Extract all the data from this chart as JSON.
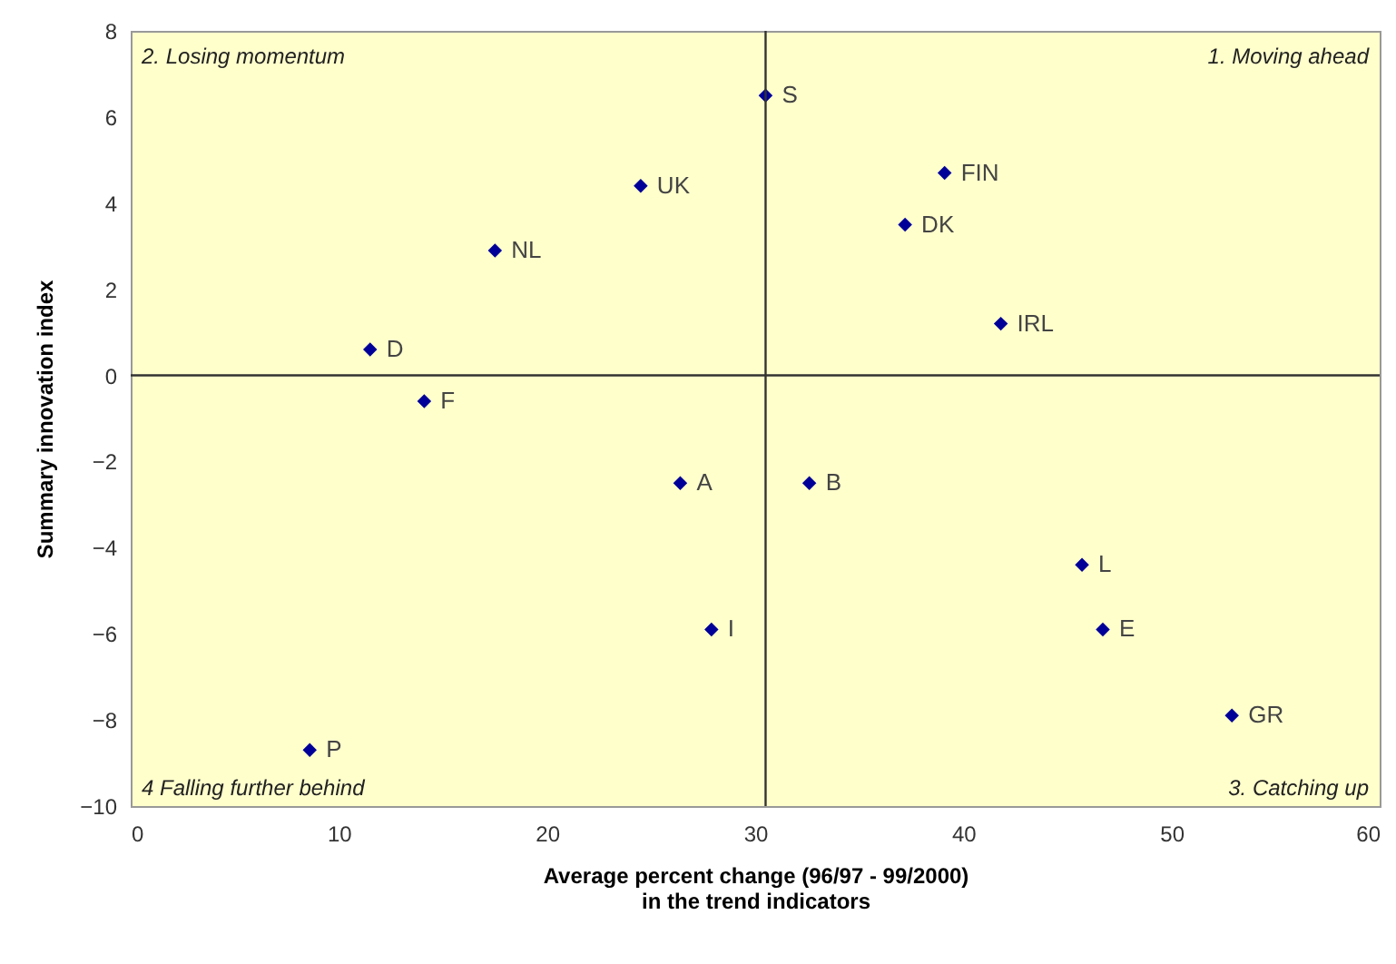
{
  "chart_data": {
    "type": "scatter",
    "xlabel": "Average percent change (96/97 - 99/2000)\nin the trend indicators",
    "ylabel": "Summary innovation index",
    "x": [
      30.5,
      24.5,
      17.5,
      11.5,
      14.1,
      39.1,
      37.2,
      41.8,
      26.4,
      32.6,
      27.9,
      45.7,
      46.7,
      52.9,
      8.6
    ],
    "series": [
      {
        "color": "#000099",
        "values": [
          6.5,
          4.4,
          2.9,
          0.6,
          -0.6,
          4.7,
          3.5,
          1.2,
          -2.5,
          -2.5,
          -5.9,
          -4.4,
          -5.9,
          -7.9,
          -8.7
        ]
      }
    ],
    "xlim": [
      0,
      60
    ],
    "xticks": [
      0,
      10,
      20,
      30,
      40,
      50,
      60
    ],
    "ylim": [
      -10,
      8
    ],
    "yticks": [
      -10,
      -8,
      -6,
      -4,
      -2,
      0,
      2,
      4,
      6,
      8
    ],
    "marker": "diamond",
    "ref_lines": [
      {
        "axis": "x",
        "value": 30.5,
        "color": "#333333"
      },
      {
        "axis": "y",
        "value": 0,
        "color": "#333333"
      }
    ],
    "annotations": [
      "2. Losing momentum",
      "1. Moving ahead",
      "3. Catching up",
      "4 Falling further behind",
      {
        "text": "S",
        "x": 30.5,
        "y": 6.5
      },
      {
        "text": "UK",
        "x": 24.5,
        "y": 4.4
      },
      {
        "text": "NL",
        "x": 17.5,
        "y": 2.9
      },
      {
        "text": "D",
        "x": 11.5,
        "y": 0.6
      },
      {
        "text": "F",
        "x": 14.1,
        "y": -0.6
      },
      {
        "text": "FIN",
        "x": 39.1,
        "y": 4.7
      },
      {
        "text": "DK",
        "x": 37.2,
        "y": 3.5
      },
      {
        "text": "IRL",
        "x": 41.8,
        "y": 1.2
      },
      {
        "text": "A",
        "x": 26.4,
        "y": -2.5
      },
      {
        "text": "B",
        "x": 32.6,
        "y": -2.5
      },
      {
        "text": "I",
        "x": 27.9,
        "y": -5.9
      },
      {
        "text": "L",
        "x": 45.7,
        "y": -4.4
      },
      {
        "text": "E",
        "x": 46.7,
        "y": -5.9
      },
      {
        "text": "GR",
        "x": 52.9,
        "y": -7.9
      },
      {
        "text": "P",
        "x": 8.6,
        "y": -8.7
      }
    ]
  }
}
